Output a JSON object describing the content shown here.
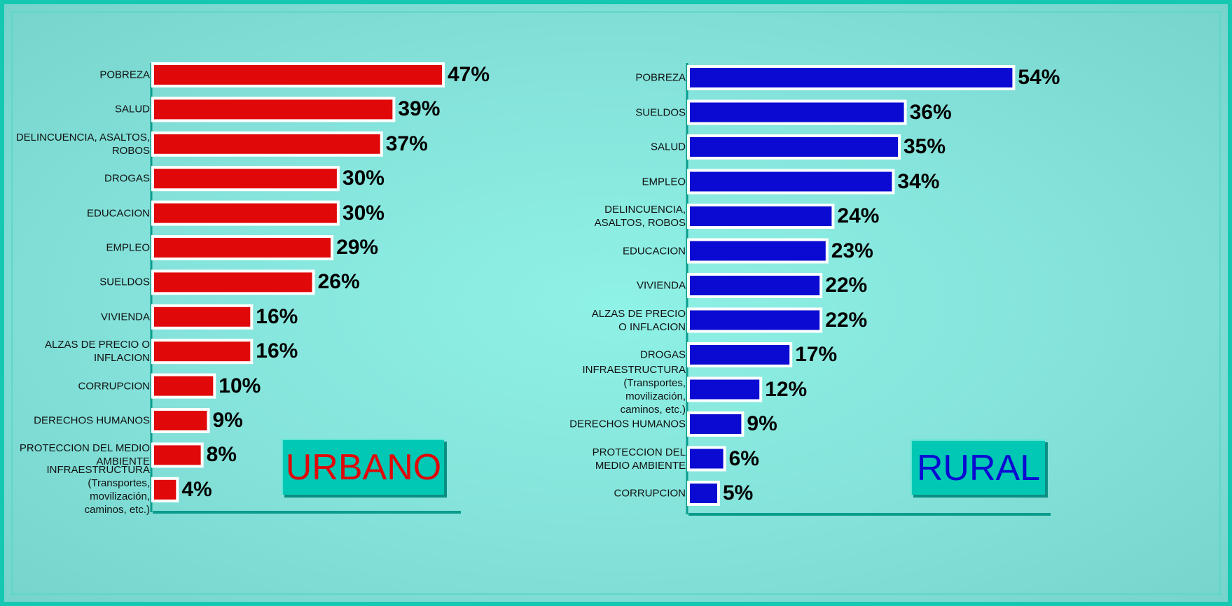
{
  "chart_data": [
    {
      "type": "bar",
      "title": "URBANO",
      "color": "#e00808",
      "categories": [
        "POBREZA",
        "SALUD",
        "DELINCUENCIA, ASALTOS,\nROBOS",
        "DROGAS",
        "EDUCACION",
        "EMPLEO",
        "SUELDOS",
        "VIVIENDA",
        "ALZAS DE PRECIO O\nINFLACION",
        "CORRUPCION",
        "DERECHOS HUMANOS",
        "PROTECCION DEL MEDIO\nAMBIENTE",
        "INFRAESTRUCTURA\n(Transportes,\nmovilización,\ncaminos, etc.)"
      ],
      "values": [
        47,
        39,
        37,
        30,
        30,
        29,
        26,
        16,
        16,
        10,
        9,
        8,
        4
      ],
      "value_labels": [
        "47%",
        "39%",
        "37%",
        "30%",
        "30%",
        "29%",
        "26%",
        "16%",
        "16%",
        "10%",
        "9%",
        "8%",
        "4%"
      ]
    },
    {
      "type": "bar",
      "title": "RURAL",
      "color": "#0a0ad2",
      "categories": [
        "POBREZA",
        "SUELDOS",
        "SALUD",
        "EMPLEO",
        "DELINCUENCIA,\nASALTOS, ROBOS",
        "EDUCACION",
        "VIVIENDA",
        "ALZAS DE PRECIO\nO INFLACION",
        "DROGAS",
        "INFRAESTRUCTURA\n(Transportes,\nmovilización,\ncaminos, etc.)",
        "DERECHOS HUMANOS",
        "PROTECCION DEL\nMEDIO AMBIENTE",
        "CORRUPCION"
      ],
      "values": [
        54,
        36,
        35,
        34,
        24,
        23,
        22,
        22,
        17,
        12,
        9,
        6,
        5
      ],
      "value_labels": [
        "54%",
        "36%",
        "35%",
        "34%",
        "24%",
        "23%",
        "22%",
        "22%",
        "17%",
        "12%",
        "9%",
        "6%",
        "5%"
      ]
    }
  ]
}
